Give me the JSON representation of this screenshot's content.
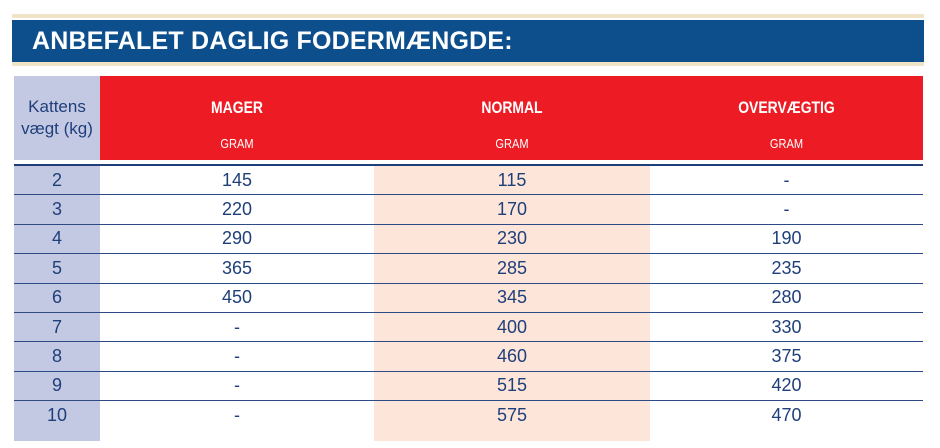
{
  "title": "ANBEFALET DAGLIG FODERMÆNGDE:",
  "header": {
    "weight_label_line1": "Kattens",
    "weight_label_line2": "vægt (kg)",
    "columns": [
      {
        "name": "MAGER",
        "unit": "GRAM"
      },
      {
        "name": "NORMAL",
        "unit": "GRAM"
      },
      {
        "name": "OVERVÆGTIG",
        "unit": "GRAM"
      }
    ]
  },
  "rows": [
    {
      "weight": "2",
      "mager": "145",
      "normal": "115",
      "overvaegtig": "-"
    },
    {
      "weight": "3",
      "mager": "220",
      "normal": "170",
      "overvaegtig": "-"
    },
    {
      "weight": "4",
      "mager": "290",
      "normal": "230",
      "overvaegtig": "190"
    },
    {
      "weight": "5",
      "mager": "365",
      "normal": "285",
      "overvaegtig": "235"
    },
    {
      "weight": "6",
      "mager": "450",
      "normal": "345",
      "overvaegtig": "280"
    },
    {
      "weight": "7",
      "mager": "-",
      "normal": "400",
      "overvaegtig": "330"
    },
    {
      "weight": "8",
      "mager": "-",
      "normal": "460",
      "overvaegtig": "375"
    },
    {
      "weight": "9",
      "mager": "-",
      "normal": "515",
      "overvaegtig": "420"
    },
    {
      "weight": "10",
      "mager": "-",
      "normal": "575",
      "overvaegtig": "470"
    }
  ],
  "colors": {
    "title_bar": "#0d4f8c",
    "header_red": "#ed1c24",
    "weight_column": "#c3c9e3",
    "normal_column": "#fde6d9",
    "text_blue": "#1f3f7a"
  }
}
